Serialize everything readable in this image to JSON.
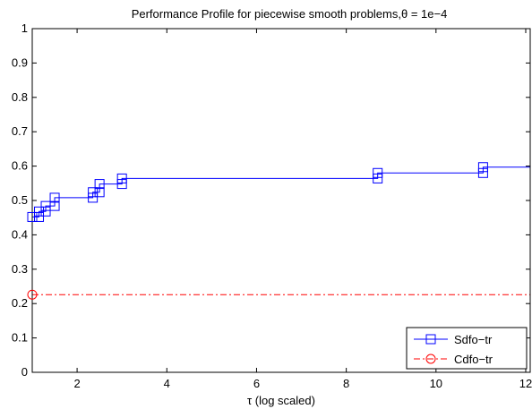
{
  "chart_data": {
    "type": "line",
    "title": "Performance Profile for piecewise smooth problems,θ = 1e−4",
    "xlabel": "τ (log scaled)",
    "ylabel": "",
    "xlim": [
      1,
      12.1
    ],
    "ylim": [
      0,
      1
    ],
    "xticks": [
      2,
      4,
      6,
      8,
      10,
      12
    ],
    "yticks": [
      0,
      0.1,
      0.2,
      0.3,
      0.4,
      0.5,
      0.6,
      0.7,
      0.8,
      0.9,
      1
    ],
    "ytick_labels": [
      "0",
      "0.1",
      "0.2",
      "0.3",
      "0.4",
      "0.5",
      "0.6",
      "0.7",
      "0.8",
      "0.9",
      "1"
    ],
    "grid": false,
    "legend_position": "bottom-right",
    "series": [
      {
        "name": "Sdfo−tr",
        "color": "#0000ff",
        "style": "solid",
        "marker": "square",
        "step": true,
        "x": [
          1.0,
          1.15,
          1.3,
          1.5,
          2.35,
          2.5,
          3.0,
          8.7,
          11.05,
          12.1
        ],
        "y": [
          0.452,
          0.468,
          0.484,
          0.508,
          0.524,
          0.548,
          0.564,
          0.58,
          0.597,
          0.603
        ]
      },
      {
        "name": "Cdfo−tr",
        "color": "#ff0000",
        "style": "dashdot",
        "marker": "circle",
        "step": true,
        "x": [
          1.0,
          12.1
        ],
        "y": [
          0.226,
          0.226
        ]
      }
    ]
  }
}
